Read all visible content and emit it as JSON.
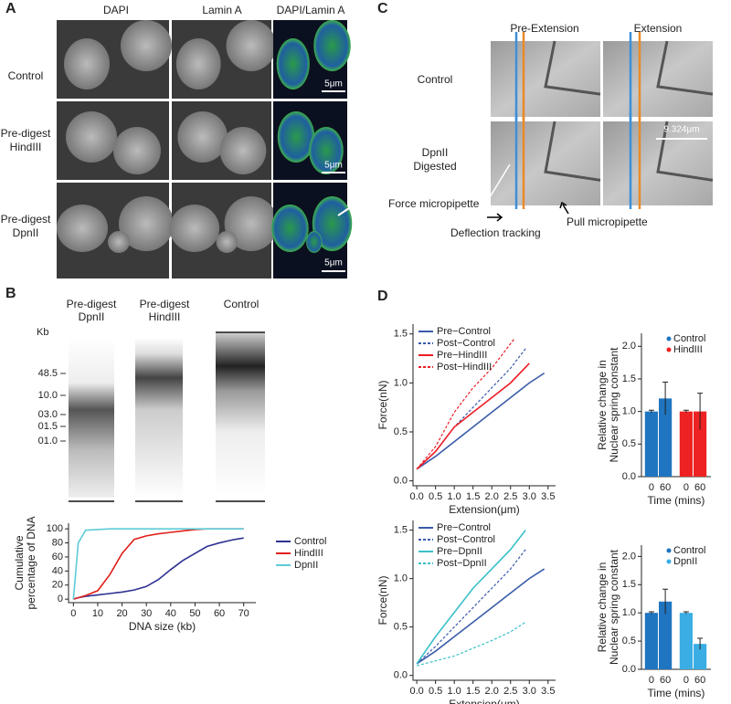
{
  "panel_labels": [
    "A",
    "B",
    "C",
    "D"
  ],
  "panel_a": {
    "columns": [
      "DAPI",
      "Lamin A",
      "DAPI/Lamin A"
    ],
    "rows": [
      [
        "Control"
      ],
      [
        "Pre-digest",
        "HindIII"
      ],
      [
        "Pre-digest",
        "DpnII"
      ]
    ],
    "scale_bars": [
      "5μm",
      "5μm",
      "5μm"
    ]
  },
  "panel_b": {
    "lanes": [
      [
        "Pre-digest",
        "DpnII"
      ],
      [
        "Pre-digest",
        "HindIII"
      ],
      [
        "Control"
      ]
    ],
    "unit": "Kb",
    "ladder": [
      "48.5",
      "10.0",
      "03.0",
      "01.5",
      "01.0"
    ]
  },
  "panel_c": {
    "columns": [
      "Pre-Extension",
      "Extension"
    ],
    "rows": [
      [
        "Control"
      ],
      [
        "DpnII",
        "Digested"
      ]
    ],
    "scale_bar": "9.324μm",
    "annotations": [
      "Force micropipette",
      "Deflection tracking",
      "Pull micropipette"
    ]
  },
  "chart_data": [
    {
      "type": "line",
      "xlabel": "DNA size (kb)",
      "ylabel": [
        "Cumulative",
        "percentage of DNA"
      ],
      "x": [
        0,
        2,
        5,
        10,
        15,
        20,
        25,
        30,
        35,
        40,
        45,
        50,
        55,
        60,
        65,
        70
      ],
      "xlim": [
        -2,
        75
      ],
      "xticks": [
        0,
        10,
        20,
        30,
        40,
        50,
        60,
        70
      ],
      "ylim": [
        -5,
        108
      ],
      "yticks": [
        0,
        20,
        40,
        60,
        80,
        100
      ],
      "legend": "right",
      "series": [
        {
          "name": "Control",
          "color": "#2e3192",
          "values": [
            0,
            2,
            4,
            6,
            8,
            10,
            13,
            18,
            28,
            42,
            55,
            65,
            75,
            80,
            84,
            87
          ]
        },
        {
          "name": "HindIII",
          "color": "#e0201b",
          "values": [
            0,
            2,
            5,
            12,
            35,
            65,
            85,
            90,
            93,
            95,
            97,
            99,
            100,
            100,
            100,
            100
          ]
        },
        {
          "name": "DpnII",
          "color": "#5ecbd6",
          "values": [
            0,
            80,
            98,
            99,
            100,
            100,
            100,
            100,
            100,
            100,
            100,
            100,
            100,
            100,
            100,
            100
          ]
        }
      ]
    },
    {
      "type": "line",
      "xlabel": "Extension(μm)",
      "ylabel": "Force(nN)",
      "xlim": [
        -0.1,
        3.7
      ],
      "xticks": [
        {
          "value": 0,
          "label": "0.0"
        },
        0.5,
        {
          "value": 1,
          "label": "1.0"
        },
        1.5,
        {
          "value": 2,
          "label": "2.0"
        },
        2.5,
        {
          "value": 3,
          "label": "3.0"
        },
        3.5
      ],
      "ylim": [
        -0.05,
        1.6
      ],
      "yticks": [
        {
          "value": 0,
          "label": "0.0"
        },
        0.5,
        {
          "value": 1,
          "label": "1.0"
        },
        1.5
      ],
      "legend": "upper left",
      "series": [
        {
          "name": "Pre−Control",
          "color": "#3a5ba9",
          "dash": false,
          "x": [
            0,
            0.5,
            1,
            1.5,
            2,
            2.5,
            3,
            3.4
          ],
          "values": [
            0.12,
            0.25,
            0.4,
            0.55,
            0.7,
            0.85,
            1.0,
            1.1
          ]
        },
        {
          "name": "Post−Control",
          "color": "#3a5ba9",
          "dash": true,
          "x": [
            0,
            0.5,
            1,
            1.5,
            2,
            2.5,
            2.9
          ],
          "values": [
            0.12,
            0.3,
            0.55,
            0.75,
            0.95,
            1.15,
            1.35
          ]
        },
        {
          "name": "Pre−HindIII",
          "color": "#ed1c24",
          "dash": false,
          "x": [
            0,
            0.5,
            1,
            1.5,
            2,
            2.5,
            3
          ],
          "values": [
            0.12,
            0.3,
            0.55,
            0.7,
            0.85,
            1.0,
            1.2
          ]
        },
        {
          "name": "Post−HindIII",
          "color": "#ed1c24",
          "dash": true,
          "x": [
            0,
            0.5,
            1,
            1.5,
            2,
            2.6
          ],
          "values": [
            0.12,
            0.35,
            0.7,
            0.95,
            1.15,
            1.45
          ]
        }
      ]
    },
    {
      "type": "bar",
      "xlabel": "Time (mins)",
      "ylabel": [
        "Relative change in",
        "Nuclear spring constant"
      ],
      "categories": [
        "0",
        "60"
      ],
      "ylim": [
        0,
        2.2
      ],
      "yticks": [
        {
          "value": 0,
          "label": "0.0"
        },
        0.5,
        {
          "value": 1,
          "label": "1.0"
        },
        1.5,
        {
          "value": 2,
          "label": "2.0"
        }
      ],
      "legend": "upper right",
      "series": [
        {
          "name": "Control",
          "color": "#1f75c0",
          "values": [
            1.0,
            1.2
          ],
          "errors": [
            0.02,
            0.25
          ]
        },
        {
          "name": "HindIII",
          "color": "#ee2222",
          "values": [
            1.0,
            1.0
          ],
          "errors": [
            0.02,
            0.28
          ]
        }
      ]
    },
    {
      "type": "line",
      "xlabel": "Extension(μm)",
      "ylabel": "Force(nN)",
      "xlim": [
        -0.1,
        3.7
      ],
      "xticks": [
        {
          "value": 0,
          "label": "0.0"
        },
        0.5,
        {
          "value": 1,
          "label": "1.0"
        },
        1.5,
        {
          "value": 2,
          "label": "2.0"
        },
        2.5,
        {
          "value": 3,
          "label": "3.0"
        },
        3.5
      ],
      "ylim": [
        -0.05,
        1.6
      ],
      "yticks": [
        {
          "value": 0,
          "label": "0.0"
        },
        0.5,
        {
          "value": 1,
          "label": "1.0"
        },
        1.5
      ],
      "legend": "upper left",
      "series": [
        {
          "name": "Pre−Control",
          "color": "#3a5ba9",
          "dash": false,
          "x": [
            0,
            0.5,
            1,
            1.5,
            2,
            2.5,
            3,
            3.4
          ],
          "values": [
            0.12,
            0.25,
            0.4,
            0.55,
            0.7,
            0.85,
            1.0,
            1.1
          ]
        },
        {
          "name": "Post−Control",
          "color": "#3a5ba9",
          "dash": true,
          "x": [
            0,
            0.5,
            1,
            1.5,
            2,
            2.5,
            2.9
          ],
          "values": [
            0.12,
            0.3,
            0.5,
            0.7,
            0.9,
            1.1,
            1.3
          ]
        },
        {
          "name": "Pre−DpnII",
          "color": "#39c0c8",
          "dash": false,
          "x": [
            0,
            0.5,
            1,
            1.5,
            2,
            2.5,
            2.9
          ],
          "values": [
            0.12,
            0.4,
            0.65,
            0.9,
            1.1,
            1.3,
            1.5
          ]
        },
        {
          "name": "Post−DpnII",
          "color": "#39c0c8",
          "dash": true,
          "x": [
            0,
            0.5,
            1,
            1.5,
            2,
            2.5,
            2.9
          ],
          "values": [
            0.1,
            0.15,
            0.2,
            0.28,
            0.36,
            0.45,
            0.55
          ]
        }
      ]
    },
    {
      "type": "bar",
      "xlabel": "Time (mins)",
      "ylabel": [
        "Relative change in",
        "Nuclear spring constant"
      ],
      "categories": [
        "0",
        "60"
      ],
      "ylim": [
        0,
        2.2
      ],
      "yticks": [
        {
          "value": 0,
          "label": "0.0"
        },
        0.5,
        {
          "value": 1,
          "label": "1.0"
        },
        1.5,
        {
          "value": 2,
          "label": "2.0"
        }
      ],
      "legend": "upper right",
      "series": [
        {
          "name": "Control",
          "color": "#1f75c0",
          "values": [
            1.0,
            1.2
          ],
          "errors": [
            0.02,
            0.22
          ]
        },
        {
          "name": "DpnII",
          "color": "#3aade4",
          "values": [
            1.0,
            0.45
          ],
          "errors": [
            0.02,
            0.1
          ]
        }
      ]
    }
  ]
}
